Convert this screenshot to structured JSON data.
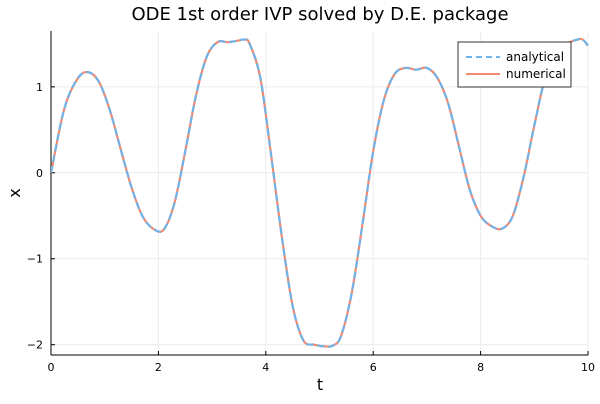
{
  "chart_data": {
    "type": "line",
    "title": "ODE 1st order IVP solved by D.E. package",
    "xlabel": "t",
    "ylabel": "x",
    "xlim": [
      0,
      10
    ],
    "ylim": [
      -2.12,
      1.65
    ],
    "grid": true,
    "legend_position": "top-right",
    "x_ticks": [
      0,
      2,
      4,
      6,
      8,
      10
    ],
    "x_tick_labels": [
      "0",
      "2",
      "4",
      "6",
      "8",
      "10"
    ],
    "y_ticks": [
      -2,
      -1,
      0,
      1
    ],
    "y_tick_labels": [
      "−2",
      "−1",
      "0",
      "1"
    ],
    "x": [
      0.0,
      0.25,
      0.5,
      0.7,
      0.9,
      1.1,
      1.3,
      1.5,
      1.7,
      1.9,
      2.1,
      2.3,
      2.5,
      2.7,
      2.9,
      3.1,
      3.3,
      3.5,
      3.6,
      3.7,
      3.9,
      4.1,
      4.3,
      4.5,
      4.7,
      4.9,
      5.1,
      5.25,
      5.4,
      5.6,
      5.8,
      6.0,
      6.2,
      6.4,
      6.6,
      6.8,
      7.0,
      7.2,
      7.4,
      7.6,
      7.8,
      8.0,
      8.2,
      8.4,
      8.6,
      8.8,
      9.0,
      9.2,
      9.4,
      9.6,
      9.8,
      9.9,
      10.0
    ],
    "series": [
      {
        "name": "analytical",
        "color": "#6fb3e8",
        "dash": "dashed",
        "values": [
          0.0,
          0.75,
          1.1,
          1.17,
          1.05,
          0.72,
          0.27,
          -0.17,
          -0.5,
          -0.65,
          -0.66,
          -0.35,
          0.25,
          0.9,
          1.35,
          1.52,
          1.52,
          1.54,
          1.55,
          1.5,
          1.1,
          0.2,
          -0.75,
          -1.55,
          -1.95,
          -2.0,
          -2.02,
          -2.01,
          -1.9,
          -1.4,
          -0.6,
          0.25,
          0.85,
          1.15,
          1.22,
          1.2,
          1.22,
          1.1,
          0.8,
          0.3,
          -0.2,
          -0.5,
          -0.62,
          -0.65,
          -0.5,
          -0.05,
          0.55,
          1.1,
          1.4,
          1.5,
          1.55,
          1.55,
          1.48
        ]
      },
      {
        "name": "numerical",
        "color": "#f08a70",
        "dash": "solid",
        "values": [
          0.0,
          0.75,
          1.1,
          1.17,
          1.05,
          0.72,
          0.27,
          -0.17,
          -0.5,
          -0.65,
          -0.66,
          -0.35,
          0.25,
          0.9,
          1.35,
          1.52,
          1.52,
          1.54,
          1.55,
          1.5,
          1.1,
          0.2,
          -0.75,
          -1.55,
          -1.95,
          -2.0,
          -2.02,
          -2.01,
          -1.9,
          -1.4,
          -0.6,
          0.25,
          0.85,
          1.15,
          1.22,
          1.2,
          1.22,
          1.1,
          0.8,
          0.3,
          -0.2,
          -0.5,
          -0.62,
          -0.65,
          -0.5,
          -0.05,
          0.55,
          1.1,
          1.4,
          1.5,
          1.55,
          1.55,
          1.48
        ]
      }
    ]
  }
}
